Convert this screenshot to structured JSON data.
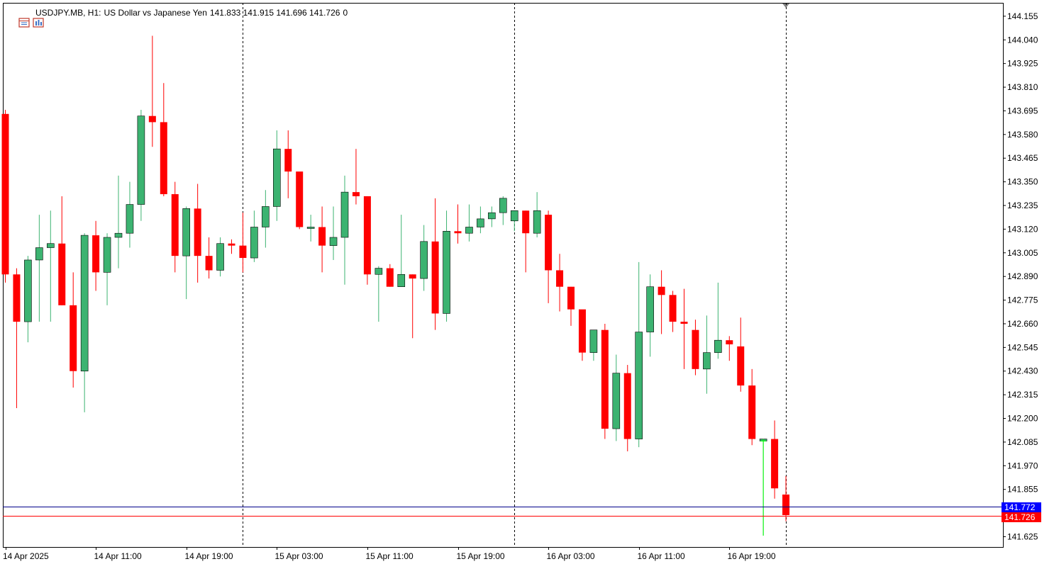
{
  "header": {
    "symbol": "USDJPY.MB, H1:",
    "description": "US Dollar vs Japanese Yen",
    "ohlc": "141.833 141.915 141.696 141.726",
    "volume": "0"
  },
  "colors": {
    "bull": "#3cb371",
    "bear": "#ff0000",
    "ask_line": "#00008b",
    "bid_line": "#ff0000",
    "ask_label_bg": "#0000ff",
    "bid_label_bg": "#ff0000",
    "current_tick": "#00ff00"
  },
  "icons": [
    "chart-window-icon",
    "chart-settings-icon"
  ],
  "price_labels": {
    "ask": "141.772",
    "bid": "141.726"
  },
  "chart_data": {
    "type": "candlestick",
    "symbol": "USDJPY.MB",
    "timeframe": "H1",
    "ylim": [
      141.575,
      144.22
    ],
    "y_ticks": [
      "144.155",
      "144.040",
      "143.925",
      "143.810",
      "143.695",
      "143.580",
      "143.465",
      "143.350",
      "143.235",
      "143.120",
      "143.005",
      "142.890",
      "142.775",
      "142.660",
      "142.545",
      "142.430",
      "142.315",
      "142.200",
      "142.085",
      "141.970",
      "141.855",
      "141.740",
      "141.625"
    ],
    "x_labels": [
      {
        "index": 0,
        "label": "14 Apr 2025"
      },
      {
        "index": 8,
        "label": "14 Apr 11:00"
      },
      {
        "index": 16,
        "label": "14 Apr 19:00"
      },
      {
        "index": 24,
        "label": "15 Apr 03:00"
      },
      {
        "index": 32,
        "label": "15 Apr 11:00"
      },
      {
        "index": 40,
        "label": "15 Apr 19:00"
      },
      {
        "index": 48,
        "label": "16 Apr 03:00"
      },
      {
        "index": 56,
        "label": "16 Apr 11:00"
      },
      {
        "index": 64,
        "label": "16 Apr 19:00"
      }
    ],
    "day_separators": [
      21,
      45,
      69
    ],
    "ask": 141.772,
    "bid": 141.726,
    "candles": [
      {
        "o": 143.68,
        "h": 143.7,
        "l": 142.86,
        "c": 142.9
      },
      {
        "o": 142.9,
        "h": 142.93,
        "l": 142.25,
        "c": 142.67
      },
      {
        "o": 142.67,
        "h": 142.99,
        "l": 142.57,
        "c": 142.97
      },
      {
        "o": 142.97,
        "h": 143.19,
        "l": 142.67,
        "c": 143.03
      },
      {
        "o": 143.03,
        "h": 143.21,
        "l": 142.67,
        "c": 143.05
      },
      {
        "o": 143.05,
        "h": 143.28,
        "l": 142.75,
        "c": 142.75
      },
      {
        "o": 142.75,
        "h": 142.91,
        "l": 142.35,
        "c": 142.43
      },
      {
        "o": 142.43,
        "h": 143.1,
        "l": 142.23,
        "c": 143.09
      },
      {
        "o": 143.09,
        "h": 143.16,
        "l": 142.82,
        "c": 142.91
      },
      {
        "o": 142.91,
        "h": 143.1,
        "l": 142.75,
        "c": 143.08
      },
      {
        "o": 143.08,
        "h": 143.38,
        "l": 142.93,
        "c": 143.1
      },
      {
        "o": 143.1,
        "h": 143.35,
        "l": 143.03,
        "c": 143.24
      },
      {
        "o": 143.24,
        "h": 143.7,
        "l": 143.16,
        "c": 143.67
      },
      {
        "o": 143.67,
        "h": 144.06,
        "l": 143.52,
        "c": 143.64
      },
      {
        "o": 143.64,
        "h": 143.83,
        "l": 143.28,
        "c": 143.29
      },
      {
        "o": 143.29,
        "h": 143.35,
        "l": 142.91,
        "c": 142.99
      },
      {
        "o": 142.99,
        "h": 143.23,
        "l": 142.78,
        "c": 143.22
      },
      {
        "o": 143.22,
        "h": 143.34,
        "l": 142.86,
        "c": 142.99
      },
      {
        "o": 142.99,
        "h": 143.08,
        "l": 142.88,
        "c": 142.92
      },
      {
        "o": 142.92,
        "h": 143.08,
        "l": 142.89,
        "c": 143.05
      },
      {
        "o": 143.05,
        "h": 143.07,
        "l": 143.0,
        "c": 143.04
      },
      {
        "o": 143.04,
        "h": 143.2,
        "l": 142.91,
        "c": 142.98
      },
      {
        "o": 142.98,
        "h": 143.21,
        "l": 142.96,
        "c": 143.13
      },
      {
        "o": 143.13,
        "h": 143.31,
        "l": 143.03,
        "c": 143.23
      },
      {
        "o": 143.23,
        "h": 143.6,
        "l": 143.16,
        "c": 143.51
      },
      {
        "o": 143.51,
        "h": 143.6,
        "l": 143.27,
        "c": 143.4
      },
      {
        "o": 143.4,
        "h": 143.39,
        "l": 143.12,
        "c": 143.13
      },
      {
        "o": 143.13,
        "h": 143.19,
        "l": 143.06,
        "c": 143.13
      },
      {
        "o": 143.13,
        "h": 143.23,
        "l": 142.91,
        "c": 143.04
      },
      {
        "o": 143.04,
        "h": 143.23,
        "l": 142.97,
        "c": 143.08
      },
      {
        "o": 143.08,
        "h": 143.38,
        "l": 142.85,
        "c": 143.3
      },
      {
        "o": 143.3,
        "h": 143.51,
        "l": 143.24,
        "c": 143.28
      },
      {
        "o": 143.28,
        "h": 143.28,
        "l": 142.85,
        "c": 142.9
      },
      {
        "o": 142.9,
        "h": 142.94,
        "l": 142.67,
        "c": 142.93
      },
      {
        "o": 142.93,
        "h": 142.95,
        "l": 142.84,
        "c": 142.84
      },
      {
        "o": 142.84,
        "h": 143.19,
        "l": 142.84,
        "c": 142.9
      },
      {
        "o": 142.9,
        "h": 142.9,
        "l": 142.59,
        "c": 142.88
      },
      {
        "o": 142.88,
        "h": 143.14,
        "l": 142.82,
        "c": 143.06
      },
      {
        "o": 143.06,
        "h": 143.27,
        "l": 142.63,
        "c": 142.71
      },
      {
        "o": 142.71,
        "h": 143.21,
        "l": 142.67,
        "c": 143.11
      },
      {
        "o": 143.11,
        "h": 143.24,
        "l": 143.05,
        "c": 143.1
      },
      {
        "o": 143.1,
        "h": 143.24,
        "l": 143.06,
        "c": 143.13
      },
      {
        "o": 143.13,
        "h": 143.23,
        "l": 143.1,
        "c": 143.17
      },
      {
        "o": 143.17,
        "h": 143.23,
        "l": 143.13,
        "c": 143.2
      },
      {
        "o": 143.2,
        "h": 143.28,
        "l": 143.14,
        "c": 143.27
      },
      {
        "o": 143.16,
        "h": 143.2,
        "l": 143.11,
        "c": 143.21
      },
      {
        "o": 143.21,
        "h": 143.21,
        "l": 142.91,
        "c": 143.1
      },
      {
        "o": 143.1,
        "h": 143.3,
        "l": 143.08,
        "c": 143.21
      },
      {
        "o": 143.19,
        "h": 143.21,
        "l": 142.76,
        "c": 142.92
      },
      {
        "o": 142.92,
        "h": 143.0,
        "l": 142.72,
        "c": 142.84
      },
      {
        "o": 142.84,
        "h": 142.84,
        "l": 142.65,
        "c": 142.73
      },
      {
        "o": 142.73,
        "h": 142.72,
        "l": 142.48,
        "c": 142.52
      },
      {
        "o": 142.52,
        "h": 142.63,
        "l": 142.48,
        "c": 142.63
      },
      {
        "o": 142.63,
        "h": 142.66,
        "l": 142.1,
        "c": 142.15
      },
      {
        "o": 142.15,
        "h": 142.51,
        "l": 142.09,
        "c": 142.42
      },
      {
        "o": 142.42,
        "h": 142.46,
        "l": 142.04,
        "c": 142.1
      },
      {
        "o": 142.1,
        "h": 142.96,
        "l": 142.06,
        "c": 142.62
      },
      {
        "o": 142.62,
        "h": 142.9,
        "l": 142.5,
        "c": 142.84
      },
      {
        "o": 142.84,
        "h": 142.92,
        "l": 142.61,
        "c": 142.8
      },
      {
        "o": 142.8,
        "h": 142.82,
        "l": 142.62,
        "c": 142.67
      },
      {
        "o": 142.67,
        "h": 142.83,
        "l": 142.44,
        "c": 142.66
      },
      {
        "o": 142.63,
        "h": 142.68,
        "l": 142.41,
        "c": 142.44
      },
      {
        "o": 142.44,
        "h": 142.7,
        "l": 142.32,
        "c": 142.52
      },
      {
        "o": 142.52,
        "h": 142.86,
        "l": 142.49,
        "c": 142.58
      },
      {
        "o": 142.58,
        "h": 142.6,
        "l": 142.48,
        "c": 142.56
      },
      {
        "o": 142.55,
        "h": 142.69,
        "l": 142.33,
        "c": 142.36
      },
      {
        "o": 142.36,
        "h": 142.44,
        "l": 142.07,
        "c": 142.1
      },
      {
        "o": 142.09,
        "h": 142.1,
        "l": 141.63,
        "c": 142.1
      },
      {
        "o": 142.1,
        "h": 142.19,
        "l": 141.81,
        "c": 141.86
      },
      {
        "o": 141.83,
        "h": 141.92,
        "l": 141.7,
        "c": 141.73
      }
    ]
  }
}
